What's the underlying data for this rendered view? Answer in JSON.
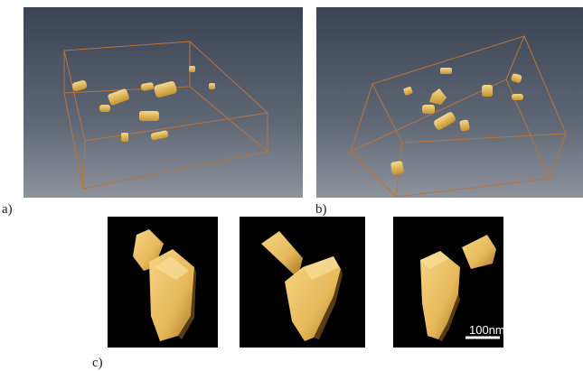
{
  "figure": {
    "panel_labels": {
      "a": "a)",
      "b": "b)",
      "c": "c)"
    },
    "scale_bar": {
      "label": "100nm"
    },
    "colors": {
      "viewport_top": "#3e4657",
      "viewport_bottom": "#8b919b",
      "bounding_box": "#b8743a",
      "particle_light": "#f3cd72",
      "particle_dark": "#b88a2e",
      "black_bg": "#000000"
    }
  }
}
